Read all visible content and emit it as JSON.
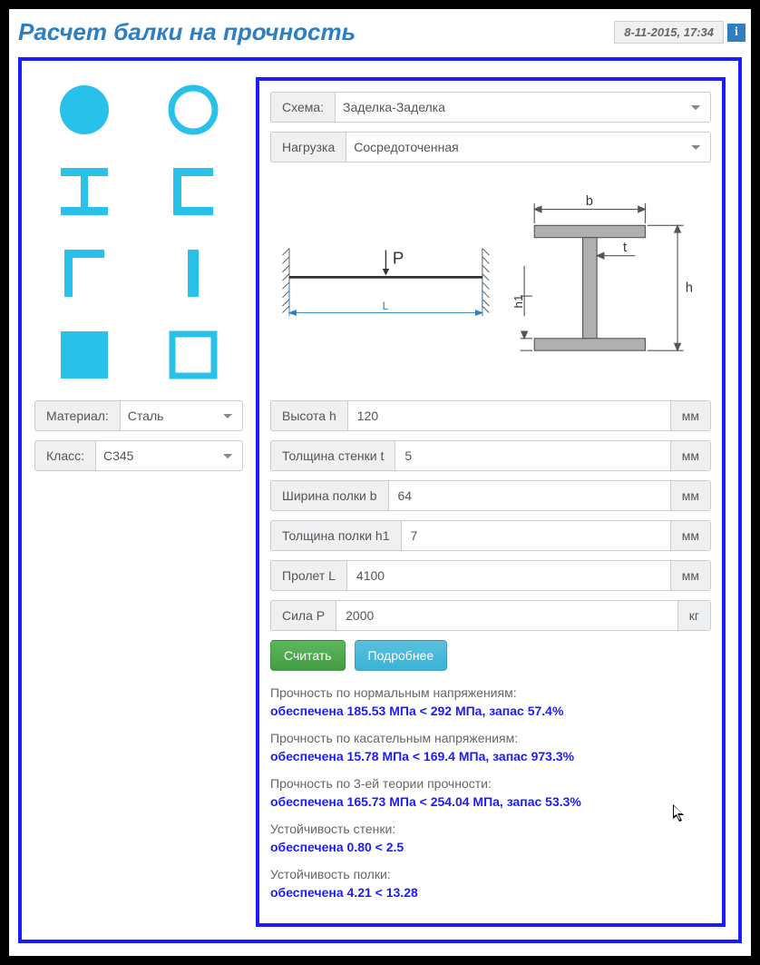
{
  "header": {
    "title": "Расчет балки на прочность",
    "timestamp": "8-11-2015, 17:34",
    "info_label": "i"
  },
  "left": {
    "material_label": "Материал:",
    "material_value": "Сталь",
    "class_label": "Класс:",
    "class_value": "C345",
    "shapes": [
      "circle-solid",
      "circle-hollow",
      "i-beam",
      "channel",
      "angle",
      "bar-vertical",
      "square-solid",
      "square-hollow"
    ]
  },
  "right": {
    "schema_label": "Схема:",
    "schema_value": "Заделка-Заделка",
    "load_label": "Нагрузка",
    "load_value": "Сосредоточенная",
    "beam_diagram": {
      "load_letter": "P",
      "span_letter": "L"
    },
    "section_diagram": {
      "b": "b",
      "t": "t",
      "h": "h",
      "h1": "h1"
    },
    "inputs": [
      {
        "label": "Высота h",
        "value": "120",
        "unit": "мм"
      },
      {
        "label": "Толщина стенки t",
        "value": "5",
        "unit": "мм"
      },
      {
        "label": "Ширина полки b",
        "value": "64",
        "unit": "мм"
      },
      {
        "label": "Толщина полки h1",
        "value": "7",
        "unit": "мм"
      },
      {
        "label": "Пролет L",
        "value": "4100",
        "unit": "мм"
      },
      {
        "label": "Сила P",
        "value": "2000",
        "unit": "кг"
      }
    ],
    "buttons": {
      "calc": "Считать",
      "more": "Подробнее"
    },
    "results": [
      {
        "title": "Прочность по нормальным напряжениям:",
        "value": "обеспечена 185.53 МПа < 292 МПа, запас 57.4%"
      },
      {
        "title": "Прочность по касательным напряжениям:",
        "value": "обеспечена 15.78 МПа < 169.4 МПа, запас 973.3%"
      },
      {
        "title": "Прочность по 3-ей теории прочности:",
        "value": "обеспечена 165.73 МПа < 254.04 МПа, запас 53.3%"
      },
      {
        "title": "Устойчивость стенки:",
        "value": "обеспечена 0.80 < 2.5"
      },
      {
        "title": "Устойчивость полки:",
        "value": "обеспечена 4.21 < 13.28"
      }
    ]
  },
  "colors": {
    "accent": "#2d7fc3",
    "frame": "#1b1bff",
    "cyan": "#29c0ea",
    "btn_green": "#5cb85c",
    "btn_blue": "#5bc0de"
  }
}
